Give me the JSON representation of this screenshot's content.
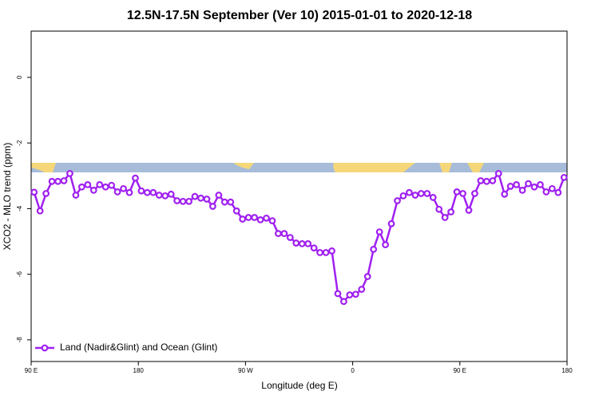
{
  "chart_data": {
    "type": "line",
    "title": "12.5N-17.5N September (Ver 10)   2015-01-01 to 2020-12-18",
    "x_label": "Longitude (deg E)",
    "y_label": "XCO2 - MLO trend (ppm)",
    "xlim": [
      90,
      540
    ],
    "ylim": [
      -8.66,
      1.41
    ],
    "xticks": [
      {
        "value": 90,
        "label": "90 E"
      },
      180,
      {
        "value": 270,
        "label": "90 W"
      },
      {
        "value": 360,
        "label": "0"
      },
      {
        "value": 450,
        "label": "90 E"
      },
      {
        "value": 540,
        "label": "180"
      }
    ],
    "yticks": [
      0,
      -2,
      -4,
      -6,
      -8
    ],
    "legend": "bottom-left",
    "x": [
      92.5,
      97.5,
      102.5,
      107.5,
      112.5,
      117.5,
      122.5,
      127.5,
      132.5,
      137.5,
      142.5,
      147.5,
      152.5,
      157.5,
      162.5,
      167.5,
      172.5,
      177.5,
      182.5,
      187.5,
      192.5,
      197.5,
      202.5,
      207.5,
      212.5,
      217.5,
      222.5,
      227.5,
      232.5,
      237.5,
      242.5,
      247.5,
      252.5,
      257.5,
      262.5,
      267.5,
      272.5,
      277.5,
      282.5,
      287.5,
      292.5,
      297.5,
      302.5,
      307.5,
      312.5,
      317.5,
      322.5,
      327.5,
      332.5,
      337.5,
      342.5,
      347.5,
      352.5,
      357.5,
      362.5,
      367.5,
      372.5,
      377.5,
      382.5,
      387.5,
      392.5,
      397.5,
      402.5,
      407.5,
      412.5,
      417.5,
      422.5,
      427.5,
      432.5,
      437.5,
      442.5,
      447.5,
      452.5,
      457.5,
      462.5,
      467.5,
      472.5,
      477.5,
      482.5,
      487.5,
      492.5,
      497.5,
      502.5,
      507.5,
      512.5,
      517.5,
      522.5,
      527.5,
      532.5,
      537.5
    ],
    "series": [
      {
        "name": "Land (Nadir&Glint) and Ocean (Glint)",
        "color": "#a020f0",
        "values": [
          -3.5,
          -4.07,
          -3.54,
          -3.17,
          -3.17,
          -3.15,
          -2.93,
          -3.59,
          -3.34,
          -3.27,
          -3.44,
          -3.27,
          -3.34,
          -3.29,
          -3.49,
          -3.39,
          -3.51,
          -3.07,
          -3.46,
          -3.51,
          -3.51,
          -3.59,
          -3.61,
          -3.56,
          -3.76,
          -3.78,
          -3.78,
          -3.63,
          -3.68,
          -3.71,
          -3.93,
          -3.59,
          -3.8,
          -3.8,
          -4.07,
          -4.32,
          -4.27,
          -4.27,
          -4.34,
          -4.29,
          -4.37,
          -4.76,
          -4.76,
          -4.88,
          -5.05,
          -5.07,
          -5.07,
          -5.2,
          -5.34,
          -5.34,
          -5.29,
          -6.59,
          -6.83,
          -6.63,
          -6.61,
          -6.46,
          -6.07,
          -5.24,
          -4.71,
          -5.1,
          -4.46,
          -3.76,
          -3.61,
          -3.51,
          -3.59,
          -3.54,
          -3.54,
          -3.66,
          -4.02,
          -4.27,
          -4.1,
          -3.49,
          -3.54,
          -4.05,
          -3.54,
          -3.15,
          -3.17,
          -3.15,
          -2.93,
          -3.56,
          -3.32,
          -3.27,
          -3.44,
          -3.24,
          -3.34,
          -3.27,
          -3.49,
          -3.39,
          -3.51,
          -3.05
        ]
      }
    ]
  }
}
